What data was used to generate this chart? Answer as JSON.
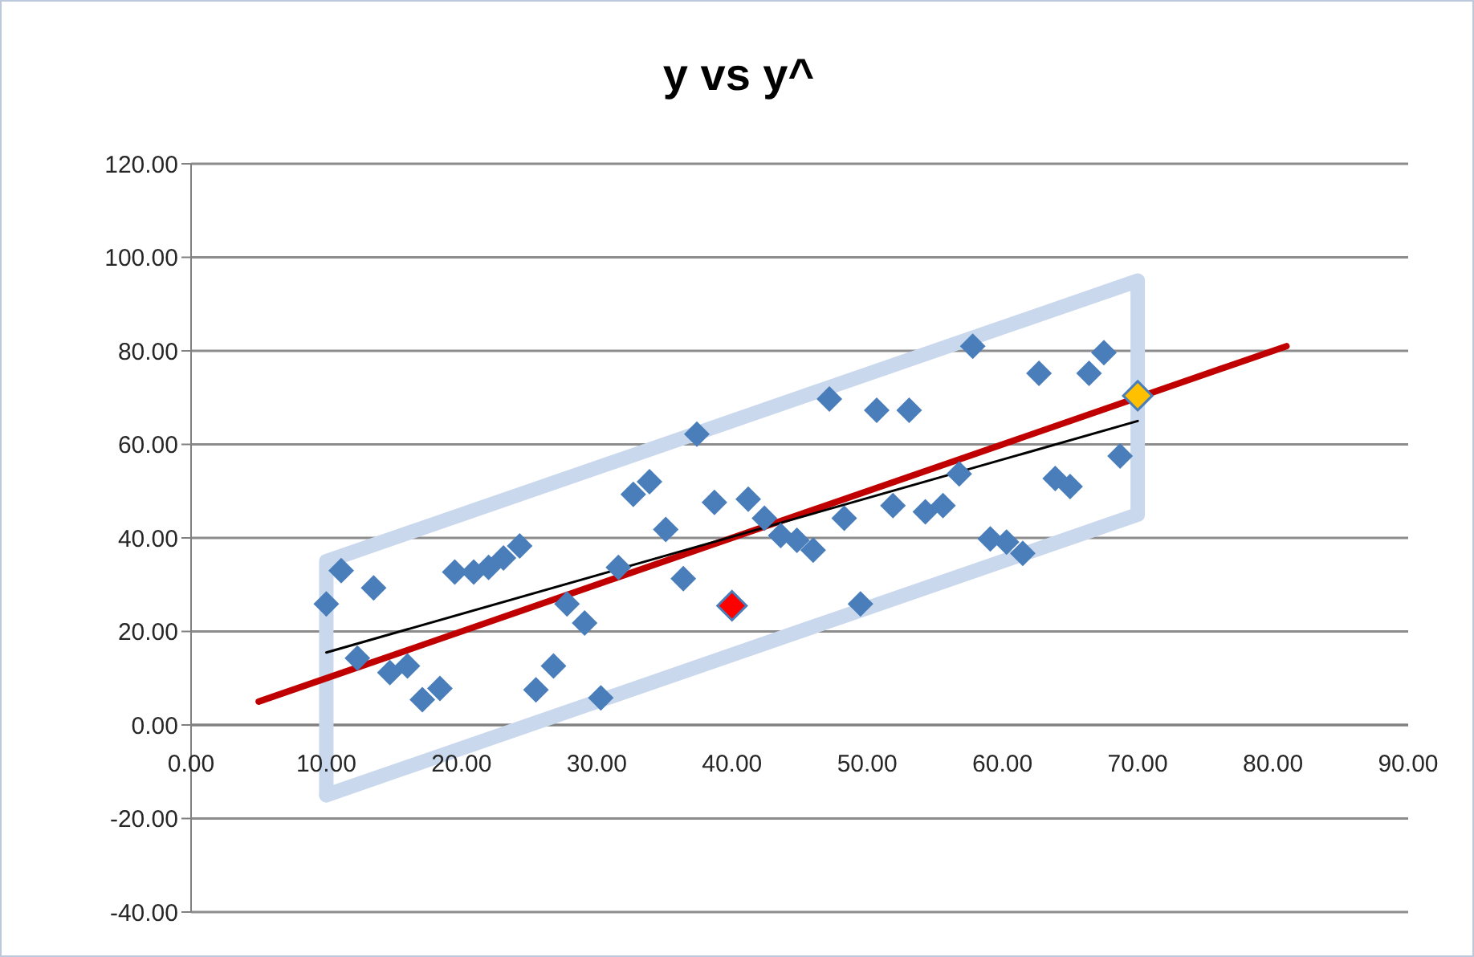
{
  "chart_data": {
    "type": "scatter",
    "title": "y vs y^",
    "grid": "y",
    "xlim": [
      0,
      90
    ],
    "xticks": [
      {
        "value": 0,
        "label": "0.00"
      },
      {
        "value": 10,
        "label": "10.00"
      },
      {
        "value": 20,
        "label": "20.00"
      },
      {
        "value": 30,
        "label": "30.00"
      },
      {
        "value": 40,
        "label": "40.00"
      },
      {
        "value": 50,
        "label": "50.00"
      },
      {
        "value": 60,
        "label": "60.00"
      },
      {
        "value": 70,
        "label": "70.00"
      },
      {
        "value": 80,
        "label": "80.00"
      },
      {
        "value": 90,
        "label": "90.00"
      }
    ],
    "ylim": [
      -40,
      120
    ],
    "yticks": [
      {
        "value": -40,
        "label": "-40.00"
      },
      {
        "value": -20,
        "label": "-20.00"
      },
      {
        "value": 0,
        "label": "0.00"
      },
      {
        "value": 20,
        "label": "20.00"
      },
      {
        "value": 40,
        "label": "40.00"
      },
      {
        "value": 60,
        "label": "60.00"
      },
      {
        "value": 80,
        "label": "80.00"
      },
      {
        "value": 100,
        "label": "100.00"
      },
      {
        "value": 120,
        "label": "120.00"
      }
    ],
    "series": [
      {
        "type": "line",
        "marker": "none",
        "color": "#c9d8ec",
        "x": [
          10,
          10,
          70
        ],
        "values": [
          -15,
          35,
          95
        ]
      },
      {
        "type": "line",
        "marker": "none",
        "color": "#c9d8ec",
        "x": [
          10,
          70,
          70
        ],
        "values": [
          -15,
          45,
          95
        ]
      },
      {
        "type": "line",
        "marker": "none",
        "color": "#c00000",
        "x": [
          5,
          81
        ],
        "values": [
          5,
          81
        ]
      },
      {
        "type": "line",
        "marker": "none",
        "color": "#000000",
        "x": [
          10,
          70
        ],
        "values": [
          15.5,
          65
        ]
      },
      {
        "marker": "diamond",
        "color": "#4a7ebb",
        "x": [
          10.0,
          11.1,
          12.3,
          13.5,
          14.7,
          16.0,
          17.1,
          18.4,
          19.5,
          20.9,
          22.0,
          23.1,
          24.3,
          25.5,
          26.8,
          27.8,
          29.1,
          30.3,
          31.6,
          32.7,
          33.9,
          35.1,
          36.4,
          37.4,
          38.7,
          41.2,
          42.4,
          43.6,
          44.8,
          46.0,
          47.2,
          48.3,
          49.5,
          50.7,
          51.9,
          53.1,
          54.3,
          55.6,
          56.8,
          57.8,
          59.1,
          60.3,
          61.5,
          62.7,
          63.9,
          65.0,
          66.4,
          67.5,
          68.7
        ],
        "values": [
          25.9,
          33.0,
          14.3,
          29.3,
          11.2,
          12.6,
          5.4,
          7.8,
          32.7,
          32.7,
          33.7,
          35.7,
          38.3,
          7.5,
          12.6,
          25.9,
          21.8,
          5.8,
          33.7,
          49.3,
          52.0,
          41.8,
          31.3,
          62.2,
          47.6,
          48.3,
          44.2,
          40.5,
          39.5,
          37.4,
          69.7,
          44.2,
          25.9,
          67.3,
          46.9,
          67.3,
          45.6,
          46.9,
          53.7,
          81.0,
          39.8,
          39.1,
          36.7,
          75.2,
          52.7,
          51.0,
          75.2,
          79.6,
          57.5
        ]
      },
      {
        "marker": "diamond",
        "color": "#ff0000",
        "x": [
          40
        ],
        "values": [
          25.5
        ]
      },
      {
        "marker": "diamond",
        "color": "#ffc000",
        "x": [
          70
        ],
        "values": [
          70.4
        ]
      }
    ]
  }
}
